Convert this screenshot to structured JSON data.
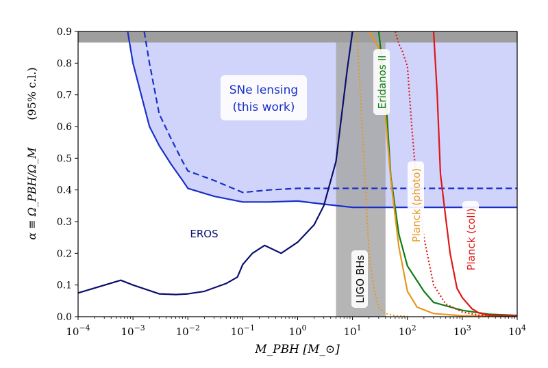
{
  "chart_data": {
    "type": "line",
    "xscale": "log",
    "xlim_exp": [
      -4,
      4
    ],
    "ylim": [
      0,
      0.9
    ],
    "xlabel": "M_PBH [M_⊙]",
    "ylabel": "α ≡ Ω_PBH/Ω_M",
    "ylabel_note": "(95% c.l.)",
    "y_ticks": [
      "0.0",
      "0.1",
      "0.2",
      "0.3",
      "0.4",
      "0.5",
      "0.6",
      "0.7",
      "0.8",
      "0.9"
    ],
    "x_ticks": [
      {
        "base": "10",
        "exp": "−4",
        "value": -4
      },
      {
        "base": "10",
        "exp": "−3",
        "value": -3
      },
      {
        "base": "10",
        "exp": "−2",
        "value": -2
      },
      {
        "base": "10",
        "exp": "−1",
        "value": -1
      },
      {
        "base": "10",
        "exp": "0",
        "value": 0
      },
      {
        "base": "10",
        "exp": "1",
        "value": 1
      },
      {
        "base": "10",
        "exp": "2",
        "value": 2
      },
      {
        "base": "10",
        "exp": "3",
        "value": 3
      },
      {
        "base": "10",
        "exp": "4",
        "value": 4
      }
    ],
    "bands": [
      {
        "name": "LIGO BHs",
        "label": "LIGO BHs",
        "x_range": [
          5,
          40
        ],
        "color": "#a8a8a8"
      },
      {
        "name": "top excluded",
        "y_range": [
          0.865,
          0.9
        ],
        "color": "#9e9e9e"
      }
    ],
    "series": [
      {
        "name": "SNe lensing (solid)",
        "color": "#1a2fc8",
        "style": "solid",
        "x": [
          0.0008,
          0.001,
          0.002,
          0.003,
          0.005,
          0.008,
          0.01,
          0.03,
          0.1,
          0.3,
          1,
          3,
          10,
          30,
          100,
          1000,
          10000
        ],
        "y": [
          0.9,
          0.8,
          0.6,
          0.54,
          0.48,
          0.43,
          0.405,
          0.38,
          0.362,
          0.362,
          0.365,
          0.355,
          0.345,
          0.345,
          0.345,
          0.345,
          0.345
        ]
      },
      {
        "name": "SNe lensing (dashed)",
        "color": "#1a2fc8",
        "style": "dashed",
        "x": [
          0.0016,
          0.002,
          0.003,
          0.005,
          0.008,
          0.01,
          0.03,
          0.1,
          0.3,
          1,
          10,
          100,
          1000,
          10000
        ],
        "y": [
          0.9,
          0.8,
          0.64,
          0.56,
          0.49,
          0.46,
          0.43,
          0.392,
          0.4,
          0.405,
          0.405,
          0.405,
          0.405,
          0.405
        ]
      },
      {
        "name": "EROS",
        "color": "#0a0f6e",
        "style": "solid",
        "x": [
          0.0001,
          0.0006,
          0.001,
          0.003,
          0.006,
          0.01,
          0.02,
          0.05,
          0.08,
          0.1,
          0.15,
          0.25,
          0.5,
          1,
          2,
          3,
          5,
          8,
          10
        ],
        "y": [
          0.075,
          0.115,
          0.1,
          0.072,
          0.07,
          0.072,
          0.08,
          0.105,
          0.125,
          0.165,
          0.2,
          0.225,
          0.2,
          0.235,
          0.29,
          0.35,
          0.49,
          0.78,
          0.9
        ]
      },
      {
        "name": "Eridanos II",
        "color": "#0b7d14",
        "style": "solid",
        "x": [
          30,
          40,
          50,
          70,
          100,
          200,
          300,
          1000,
          3000,
          10000
        ],
        "y": [
          0.9,
          0.7,
          0.44,
          0.26,
          0.16,
          0.08,
          0.045,
          0.02,
          0.008,
          0.004
        ]
      },
      {
        "name": "Planck (photo)",
        "color": "#e8961e",
        "style": "solid",
        "x": [
          20,
          25,
          30,
          40,
          50,
          70,
          100,
          150,
          300,
          1000,
          10000
        ],
        "y": [
          0.9,
          0.87,
          0.85,
          0.63,
          0.43,
          0.22,
          0.08,
          0.03,
          0.01,
          0.003,
          0.002
        ]
      },
      {
        "name": "Planck (photo) dotted",
        "color": "#e8961e",
        "style": "dotted",
        "x": [
          12,
          15,
          18,
          20,
          25,
          30,
          40,
          60,
          100
        ],
        "y": [
          0.9,
          0.6,
          0.35,
          0.2,
          0.08,
          0.03,
          0.01,
          0.003,
          0.001
        ]
      },
      {
        "name": "Planck (coll)",
        "color": "#e01616",
        "style": "solid",
        "x": [
          300,
          350,
          400,
          500,
          600,
          800,
          1000,
          1500,
          2000,
          3000,
          10000
        ],
        "y": [
          0.9,
          0.7,
          0.45,
          0.31,
          0.2,
          0.09,
          0.06,
          0.025,
          0.012,
          0.005,
          0.002
        ]
      },
      {
        "name": "Planck (coll) dotted",
        "color": "#e01616",
        "style": "dotted",
        "x": [
          60,
          70,
          80,
          100,
          120,
          150,
          200,
          300,
          500,
          1000,
          2000,
          5000
        ],
        "y": [
          0.9,
          0.86,
          0.84,
          0.79,
          0.6,
          0.4,
          0.25,
          0.1,
          0.04,
          0.015,
          0.005,
          0.002
        ]
      }
    ],
    "annotations": [
      {
        "name": "sne-label",
        "lines": [
          "SNe lensing",
          "(this work)"
        ],
        "color": "#1a2fc8"
      },
      {
        "name": "eros-label",
        "text": "EROS",
        "color": "#0a0f6e"
      },
      {
        "name": "eridanos-label",
        "text": "Eridanos II",
        "color": "#0b7d14"
      },
      {
        "name": "planck-photo-label",
        "text": "Planck (photo)",
        "color": "#e8961e"
      },
      {
        "name": "planck-coll-label",
        "text": "Planck (coll)",
        "color": "#e01616"
      },
      {
        "name": "ligo-label",
        "text": "LIGO BHs",
        "color": "#000000"
      }
    ],
    "fill_color": "#d0d4fb"
  }
}
